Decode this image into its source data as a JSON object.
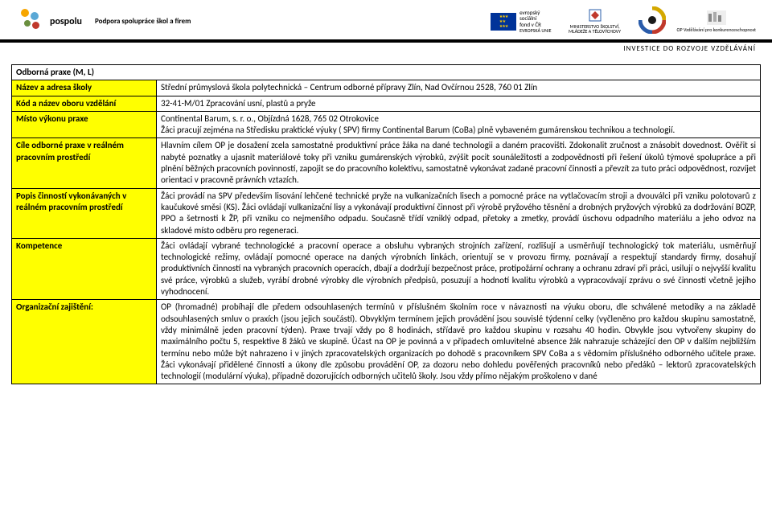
{
  "header": {
    "pospolu": "pospolu",
    "tagline": "Podpora spolupráce škol a firem",
    "eu_lines": [
      "evropský",
      "sociální",
      "fond v ČR",
      "EVROPSKÁ UNIE"
    ],
    "msmt": "MINISTERSTVO ŠKOLSTVÍ, MLÁDEŽE A TĚLOVÝCHOVY",
    "op": "OP Vzdělávání pro konkurenceschopnost",
    "invest": "INVESTICE DO ROZVOJE VZDĚLÁVÁNÍ"
  },
  "section_title": "Odborná praxe (M, L)",
  "rows": [
    {
      "label": "Název a adresa školy",
      "value": "Střední průmyslová škola polytechnická – Centrum odborné přípravy Zlín, Nad Ovčírnou 2528, 760 01 Zlín"
    },
    {
      "label": "Kód a název oboru vzdělání",
      "value": "32-41-M/01 Zpracování usní, plastů a pryže"
    },
    {
      "label": "Místo výkonu praxe",
      "value": "Continental Barum, s. r. o., Objízdná 1628, 765 02 Otrokovice\nŽáci pracují zejména na Středisku praktické výuky ( SPV) firmy Continental Barum (CoBa) plně vybaveném gumárenskou technikou a technologií."
    },
    {
      "label": "Cíle odborné praxe v reálném pracovním prostředí",
      "value": "Hlavním cílem OP je dosažení zcela samostatné produktivní práce žáka na dané technologii a daném pracovišti. Zdokonalit zručnost a znásobit dovednost. Ověřit si nabyté poznatky a ujasnit materiálové toky při vzniku gumárenských výrobků, zvýšit pocit sounáležitosti a zodpovědnosti při řešení úkolů týmové spolupráce a při plnění běžných pracovních povinností, zapojit se do pracovního kolektivu, samostatně vykonávat zadané pracovní činnosti a převzít za tuto práci odpovědnost, rozvíjet orientaci v pracovně právních vztazích."
    },
    {
      "label": "Popis činností vykonávaných v reálném pracovním prostředí",
      "value": "Žáci provádí na SPV především lisování lehčené technické pryže na vulkanizačních lisech a pomocné práce na vytlačovacím stroji a dvouválci při vzniku polotovarů z kaučukové směsi (KS). Žáci ovládají vulkanizační lisy a vykonávají produktivní činnost při výrobě pryžového těsnění a drobných pryžových výrobků za dodržování BOZP, PPO a šetrnosti k ŽP, při vzniku co nejmenšího odpadu. Současně třídí vzniklý odpad, přetoky a zmetky, provádí úschovu odpadního materiálu a jeho odvoz na skladové místo odběru pro regeneraci."
    },
    {
      "label": "Kompetence",
      "value": "Žáci ovládají vybrané technologické a pracovní operace a obsluhu vybraných strojních zařízení, rozlišují a usměrňují technologický tok materiálu, usměrňují technologické režimy, ovládají pomocné operace na daných výrobních linkách, orientují se v provozu firmy, poznávají a respektují standardy firmy, dosahují produktivních činností na vybraných pracovních operacích, dbají a dodržují bezpečnost práce, protipožární ochrany a ochranu zdraví při práci, usilují o nejvyšší kvalitu své práce, výrobků a služeb, vyrábí drobné výrobky dle výrobních předpisů, posuzují a hodnotí kvalitu výrobků a vypracovávají zprávu o své činnosti včetně jejího vyhodnocení."
    },
    {
      "label": "Organizační zajištění:",
      "value": "OP (hromadné) probíhají dle předem odsouhlasených termínů v příslušném školním roce v návaznosti na výuku oboru, dle schválené metodiky a na základě odsouhlasených smluv o praxích (jsou jejich součástí). Obvyklým termínem jejich provádění jsou souvislé týdenní celky (vyčleněno pro každou skupinu samostatně, vždy minimálně jeden pracovní týden). Praxe trvají vždy po 8 hodinách, střídavě pro každou skupinu v rozsahu 40 hodin. Obvykle jsou vytvořeny skupiny do maximálního počtu 5, respektive 8 žáků ve skupině. Účast na OP je povinná a v případech omluvitelné absence žák nahrazuje scházející den OP v dalším nejbližším termínu nebo může být nahrazeno i v jiných zpracovatelských organizacích po dohodě s pracovníkem SPV CoBa a s vědomím příslušného odborného učitele praxe. Žáci vykonávají přidělené činnosti a úkony dle způsobu provádění OP, za dozoru nebo dohledu pověřených pracovníků nebo předáků – lektorů zpracovatelských technologií (modulární výuka), případně dozorujících odborných učitelů školy. Jsou vždy přímo nějakým proškoleno v dané"
    }
  ]
}
